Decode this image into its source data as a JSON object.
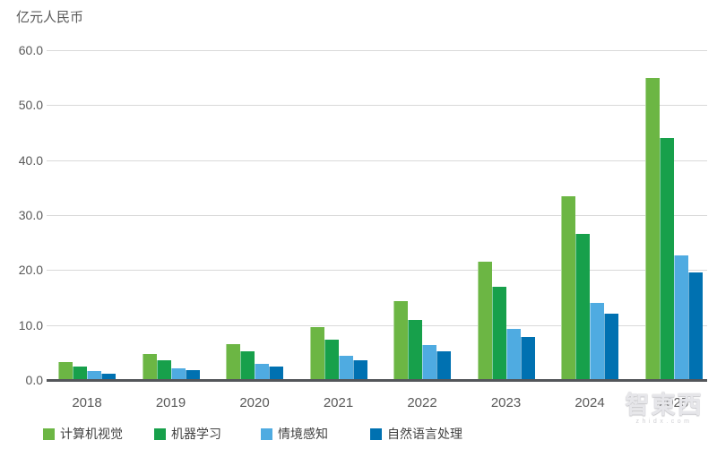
{
  "chart_data": {
    "type": "bar",
    "title": "亿元人民币",
    "categories": [
      "2018",
      "2019",
      "2020",
      "2021",
      "2022",
      "2023",
      "2024",
      "2025"
    ],
    "series": [
      {
        "name": "计算机视觉",
        "color": "#6CB644",
        "values": [
          3.3,
          4.7,
          6.6,
          9.7,
          14.3,
          21.5,
          33.5,
          55.0
        ]
      },
      {
        "name": "机器学习",
        "color": "#17A04B",
        "values": [
          2.5,
          3.6,
          5.2,
          7.4,
          11.0,
          17.0,
          26.6,
          44.0
        ]
      },
      {
        "name": "情境感知",
        "color": "#4FABE1",
        "values": [
          1.6,
          2.2,
          3.0,
          4.4,
          6.3,
          9.3,
          14.0,
          22.6
        ]
      },
      {
        "name": "自然语言处理",
        "color": "#0071B1",
        "values": [
          1.2,
          1.8,
          2.5,
          3.6,
          5.3,
          7.9,
          12.1,
          19.6
        ]
      }
    ],
    "ylim": [
      0,
      60
    ],
    "ytick_interval": 10,
    "ytick_labels": [
      "0.0",
      "10.0",
      "20.0",
      "30.0",
      "40.0",
      "50.0",
      "60.0"
    ],
    "grid": true,
    "legend_position": "bottom-left",
    "axis_color": "#54565A",
    "gridline_color": "#D9D9D9",
    "label_color": "#595959"
  },
  "watermark": {
    "logo_text": "智東西",
    "sub_text": "zhidx.com"
  }
}
